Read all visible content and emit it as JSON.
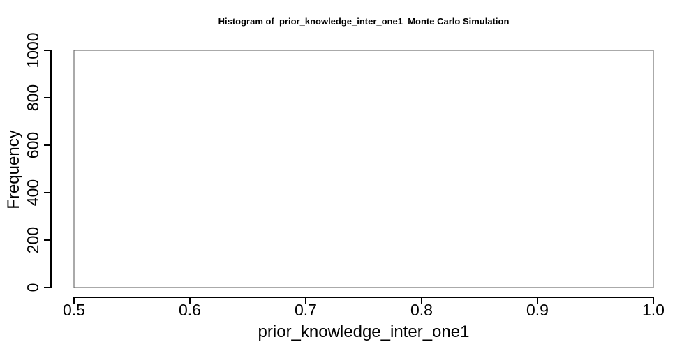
{
  "chart_data": {
    "type": "bar",
    "title": "Histogram of  prior_knowledge_inter_one1  Monte Carlo Simulation",
    "xlabel": "prior_knowledge_inter_one1",
    "ylabel": "Frequency",
    "xlim": [
      0.5,
      1.0
    ],
    "ylim": [
      0,
      1000
    ],
    "x_ticks": [
      0.5,
      0.6,
      0.7,
      0.8,
      0.9,
      1.0
    ],
    "x_tick_labels": [
      "0.5",
      "0.6",
      "0.7",
      "0.8",
      "0.9",
      "1.0"
    ],
    "y_ticks": [
      0,
      200,
      400,
      600,
      800,
      1000
    ],
    "y_tick_labels": [
      "0",
      "200",
      "400",
      "600",
      "800",
      "1000"
    ],
    "bins": [
      {
        "x_start": 0.5,
        "x_end": 1.0,
        "count": 1000
      }
    ],
    "grid": false,
    "colors": {
      "bar_fill": "#ffffff",
      "bar_stroke": "#555555",
      "axis": "#000000"
    }
  }
}
